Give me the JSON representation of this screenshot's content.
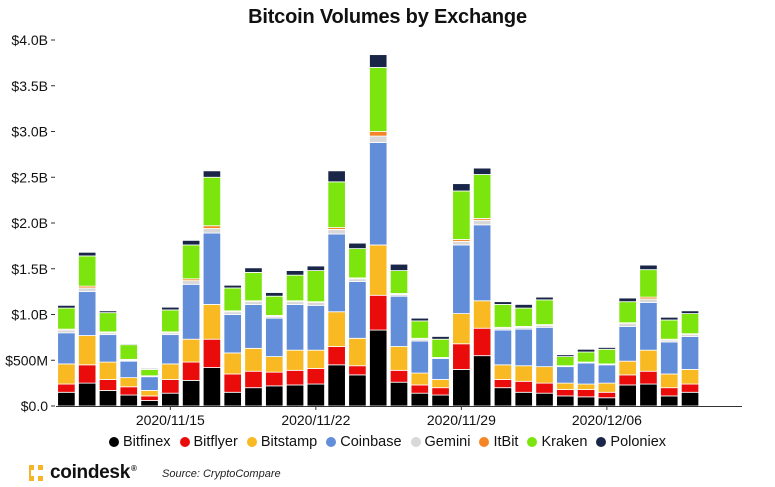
{
  "logo": {
    "text": "coindesk",
    "reg": "®"
  },
  "source": "Source: CryptoCompare",
  "chart_data": {
    "type": "bar",
    "stacked": true,
    "title": "Bitcoin Volumes by Exchange",
    "xlabel": "",
    "ylabel": "",
    "ylim": [
      0,
      4.0
    ],
    "yunit": "billions USD",
    "yticks": [
      {
        "value": 0.0,
        "label": "$0.0"
      },
      {
        "value": 0.5,
        "label": "$500M"
      },
      {
        "value": 1.0,
        "label": "$1.0B"
      },
      {
        "value": 1.5,
        "label": "$1.5B"
      },
      {
        "value": 2.0,
        "label": "$2.0B"
      },
      {
        "value": 2.5,
        "label": "$2.5B"
      },
      {
        "value": 3.0,
        "label": "$3.0B"
      },
      {
        "value": 3.5,
        "label": "$3.5B"
      },
      {
        "value": 4.0,
        "label": "$4.0B"
      }
    ],
    "categories": [
      "2020/11/10",
      "2020/11/11",
      "2020/11/12",
      "2020/11/13",
      "2020/11/14",
      "2020/11/15",
      "2020/11/16",
      "2020/11/17",
      "2020/11/18",
      "2020/11/19",
      "2020/11/20",
      "2020/11/21",
      "2020/11/22",
      "2020/11/23",
      "2020/11/24",
      "2020/11/25",
      "2020/11/26",
      "2020/11/27",
      "2020/11/28",
      "2020/11/29",
      "2020/11/30",
      "2020/12/01",
      "2020/12/02",
      "2020/12/03",
      "2020/12/04",
      "2020/12/05",
      "2020/12/06",
      "2020/12/07",
      "2020/12/08",
      "2020/12/09",
      "2020/12/10",
      "2020/12/11",
      "2020/12/12"
    ],
    "xtick_labels": [
      {
        "category": "2020/11/15",
        "label": "2020/11/15"
      },
      {
        "category": "2020/11/22",
        "label": "2020/11/22"
      },
      {
        "category": "2020/11/29",
        "label": "2020/11/29"
      },
      {
        "category": "2020/12/06",
        "label": "2020/12/06"
      }
    ],
    "grid": false,
    "legend_position": "bottom",
    "series": [
      {
        "name": "Bitfinex",
        "color": "#000000",
        "values": [
          0.15,
          0.25,
          0.17,
          0.12,
          0.06,
          0.14,
          0.28,
          0.42,
          0.15,
          0.2,
          0.22,
          0.23,
          0.24,
          0.45,
          0.34,
          0.83,
          0.26,
          0.14,
          0.12,
          0.4,
          0.55,
          0.2,
          0.15,
          0.14,
          0.11,
          0.1,
          0.09,
          0.23,
          0.24,
          0.11,
          0.15,
          0,
          0
        ]
      },
      {
        "name": "Bitflyer",
        "color": "#ea0b0b",
        "values": [
          0.09,
          0.2,
          0.12,
          0.09,
          0.05,
          0.15,
          0.2,
          0.31,
          0.2,
          0.18,
          0.15,
          0.16,
          0.17,
          0.2,
          0.1,
          0.38,
          0.13,
          0.09,
          0.08,
          0.28,
          0.3,
          0.09,
          0.12,
          0.11,
          0.07,
          0.08,
          0.06,
          0.11,
          0.14,
          0.09,
          0.09,
          0,
          0
        ]
      },
      {
        "name": "Bitstamp",
        "color": "#f8b922",
        "values": [
          0.22,
          0.32,
          0.19,
          0.1,
          0.06,
          0.17,
          0.25,
          0.38,
          0.23,
          0.25,
          0.17,
          0.22,
          0.2,
          0.38,
          0.3,
          0.55,
          0.26,
          0.13,
          0.09,
          0.33,
          0.3,
          0.16,
          0.17,
          0.18,
          0.07,
          0.06,
          0.1,
          0.15,
          0.23,
          0.15,
          0.16,
          0,
          0
        ]
      },
      {
        "name": "Coinbase",
        "color": "#628dd9",
        "values": [
          0.34,
          0.48,
          0.3,
          0.18,
          0.15,
          0.32,
          0.6,
          0.78,
          0.42,
          0.48,
          0.42,
          0.5,
          0.49,
          0.85,
          0.62,
          1.12,
          0.55,
          0.35,
          0.23,
          0.75,
          0.83,
          0.38,
          0.4,
          0.43,
          0.18,
          0.23,
          0.2,
          0.38,
          0.52,
          0.35,
          0.36,
          0,
          0
        ]
      },
      {
        "name": "Gemini",
        "color": "#d8d8d8",
        "values": [
          0.03,
          0.04,
          0.02,
          0.01,
          0.01,
          0.02,
          0.04,
          0.05,
          0.03,
          0.03,
          0.02,
          0.03,
          0.03,
          0.05,
          0.03,
          0.07,
          0.02,
          0.02,
          0.01,
          0.04,
          0.05,
          0.02,
          0.02,
          0.02,
          0.01,
          0.01,
          0.01,
          0.03,
          0.04,
          0.02,
          0.02,
          0,
          0
        ]
      },
      {
        "name": "ItBit",
        "color": "#f58524",
        "values": [
          0.01,
          0.02,
          0.01,
          0.01,
          0.0,
          0.01,
          0.02,
          0.03,
          0.01,
          0.01,
          0.01,
          0.01,
          0.01,
          0.02,
          0.01,
          0.05,
          0.01,
          0.01,
          0.0,
          0.02,
          0.02,
          0.01,
          0.01,
          0.01,
          0.0,
          0.0,
          0.0,
          0.01,
          0.02,
          0.01,
          0.01,
          0,
          0
        ]
      },
      {
        "name": "Kraken",
        "color": "#7ce50d",
        "values": [
          0.23,
          0.33,
          0.21,
          0.16,
          0.07,
          0.24,
          0.37,
          0.53,
          0.25,
          0.31,
          0.21,
          0.28,
          0.34,
          0.5,
          0.32,
          0.7,
          0.25,
          0.19,
          0.2,
          0.53,
          0.48,
          0.25,
          0.2,
          0.27,
          0.1,
          0.11,
          0.16,
          0.23,
          0.3,
          0.21,
          0.22,
          0,
          0
        ]
      },
      {
        "name": "Poloniex",
        "color": "#1a2648",
        "values": [
          0.03,
          0.04,
          0.02,
          0.01,
          0.01,
          0.03,
          0.05,
          0.07,
          0.03,
          0.05,
          0.04,
          0.05,
          0.05,
          0.12,
          0.06,
          0.14,
          0.07,
          0.03,
          0.03,
          0.08,
          0.07,
          0.03,
          0.04,
          0.03,
          0.02,
          0.03,
          0.02,
          0.04,
          0.05,
          0.03,
          0.03,
          0,
          0
        ]
      }
    ]
  }
}
